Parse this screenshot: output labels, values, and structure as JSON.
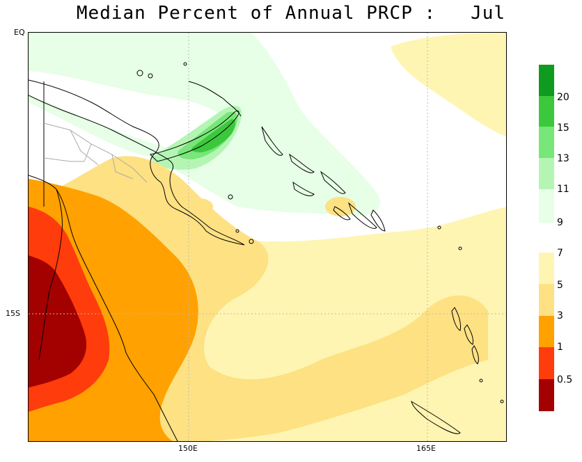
{
  "title": "Median Percent of Annual PRCP :   Jul",
  "map": {
    "lat_labels": [
      "EQ",
      "15S"
    ],
    "lon_labels": [
      "150E",
      "165E"
    ],
    "colors": {
      "c0_5": "#a30000",
      "c1": "#ff3c0c",
      "c3": "#ffa100",
      "c5": "#fde183",
      "c7": "#fef5b3",
      "c9": "#e6ffe6",
      "c11": "#b4f5b4",
      "c13": "#78e678",
      "c15": "#3cc83c",
      "c20": "#0f9a20",
      "land": "#000000",
      "border": "#aaaaaa",
      "grid": "#bbbbbb"
    }
  },
  "legend": {
    "upper": [
      {
        "label": "20",
        "color": "#0f9a20"
      },
      {
        "label": "15",
        "color": "#3cc83c"
      },
      {
        "label": "13",
        "color": "#78e678"
      },
      {
        "label": "11",
        "color": "#b4f5b4"
      },
      {
        "label": "9",
        "color": "#e6ffe6"
      }
    ],
    "lower": [
      {
        "label": "7",
        "color": "#fef5b3"
      },
      {
        "label": "5",
        "color": "#fde183"
      },
      {
        "label": "3",
        "color": "#ffa100"
      },
      {
        "label": "1",
        "color": "#ff3c0c"
      },
      {
        "label": "0.5",
        "color": "#a30000"
      }
    ]
  }
}
